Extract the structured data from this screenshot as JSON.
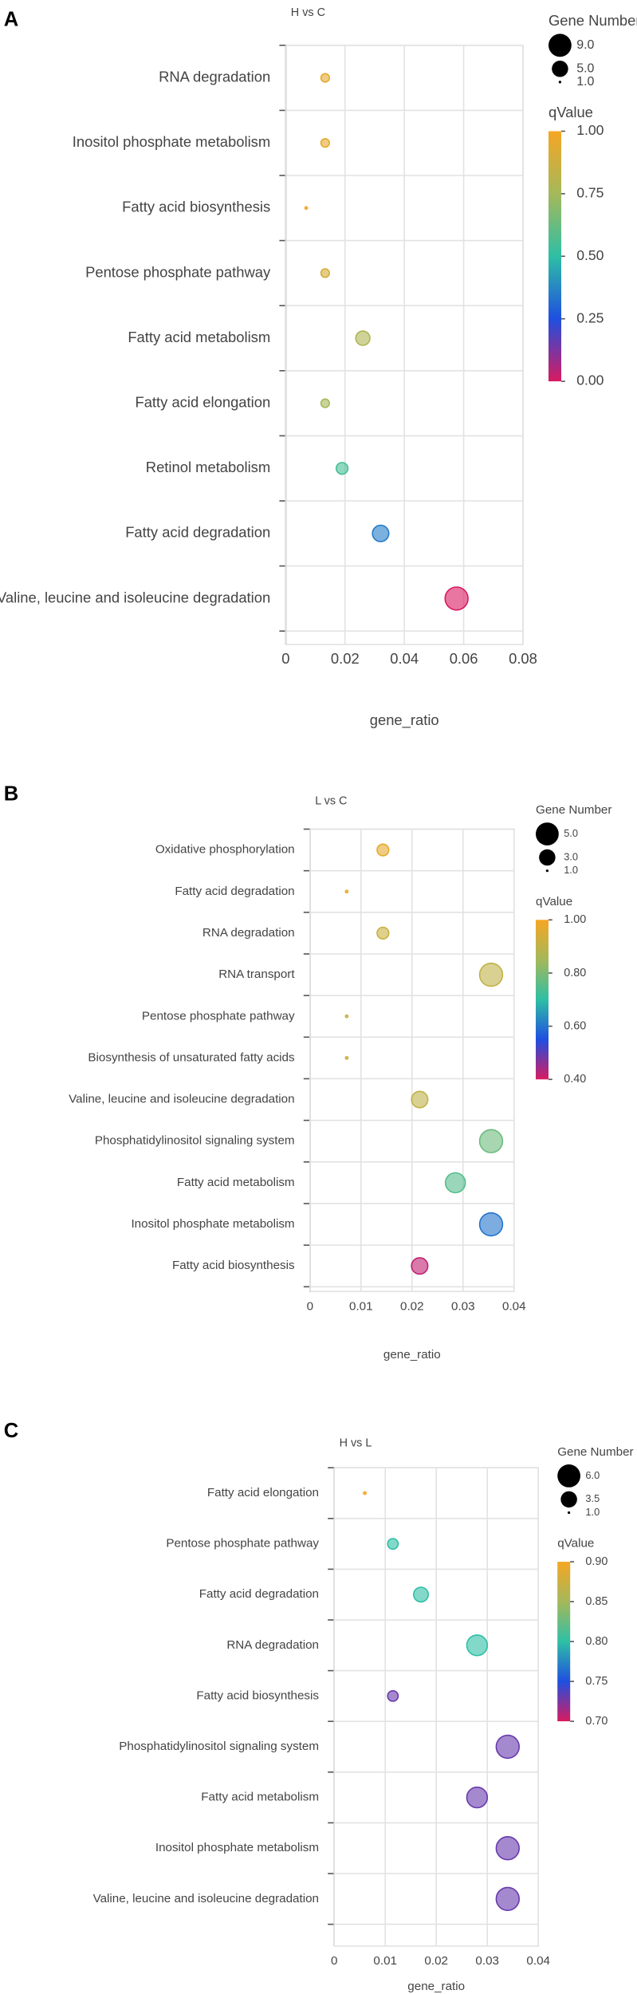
{
  "chart_data": [
    {
      "type": "bubble",
      "panel": "A",
      "title": "H vs C",
      "x_label": "gene_ratio",
      "categories": [
        "RNA degradation",
        "Inositol phosphate metabolism",
        "Fatty acid biosynthesis",
        "Pentose phosphate pathway",
        "Fatty acid metabolism",
        "Fatty acid elongation",
        "Retinol metabolism",
        "Fatty acid degradation",
        "Valine, leucine and isoleucine degradation"
      ],
      "values": [
        0.0133,
        0.0133,
        0.0069,
        0.0133,
        0.026,
        0.0133,
        0.019,
        0.032,
        0.0576
      ],
      "sizes": [
        2,
        2,
        1,
        2,
        4,
        2,
        3,
        5,
        9
      ],
      "qvalues": [
        0.95,
        0.95,
        1.0,
        0.9,
        0.78,
        0.75,
        0.55,
        0.35,
        0.0
      ],
      "xlim": [
        0,
        0.08
      ],
      "xticks": [
        0,
        0.02,
        0.04,
        0.06,
        0.08
      ],
      "grid": true,
      "size_title": "Gene Number",
      "size_ticks": [
        {
          "value": 9,
          "label": "9.0"
        },
        {
          "value": 5,
          "label": "5.0"
        },
        {
          "value": 1,
          "label": "1.0"
        }
      ],
      "color_title": "qValue",
      "clim": [
        0,
        1
      ],
      "color_ticks": [
        {
          "value": 1,
          "label": "1.00"
        },
        {
          "value": 0.75,
          "label": "0.75"
        },
        {
          "value": 0.5,
          "label": "0.50"
        },
        {
          "value": 0.25,
          "label": "0.25"
        },
        {
          "value": 0,
          "label": "0.00"
        }
      ],
      "colormap": [
        "#d81b60",
        "#1f4fe0",
        "#2ebfa5",
        "#a5b85a",
        "#f5a623"
      ]
    },
    {
      "type": "bubble",
      "panel": "B",
      "title": "L vs C",
      "x_label": "gene_ratio",
      "categories": [
        "Oxidative phosphorylation",
        "Fatty acid degradation",
        "RNA degradation",
        "RNA transport",
        "Pentose phosphate pathway",
        "Biosynthesis of unsaturated fatty acids",
        "Valine, leucine and isoleucine degradation",
        "Phosphatidylinositol signaling system",
        "Fatty acid metabolism",
        "Inositol phosphate metabolism",
        "Fatty acid biosynthesis"
      ],
      "values": [
        0.0143,
        0.0072,
        0.0143,
        0.0355,
        0.0072,
        0.0072,
        0.0215,
        0.0355,
        0.0285,
        0.0355,
        0.0215
      ],
      "sizes": [
        2,
        1,
        2,
        5,
        1,
        1,
        3,
        5,
        4,
        5,
        3
      ],
      "qvalues": [
        0.97,
        0.97,
        0.92,
        0.9,
        0.92,
        0.92,
        0.9,
        0.78,
        0.75,
        0.6,
        0.42
      ],
      "xlim": [
        0,
        0.04
      ],
      "xticks": [
        0,
        0.01,
        0.02,
        0.03,
        0.04
      ],
      "grid": true,
      "size_title": "Gene Number",
      "size_ticks": [
        {
          "value": 5,
          "label": "5.0"
        },
        {
          "value": 3,
          "label": "3.0"
        },
        {
          "value": 1,
          "label": "1.0"
        }
      ],
      "color_title": "qValue",
      "clim": [
        0.4,
        1
      ],
      "color_ticks": [
        {
          "value": 1,
          "label": "1.00"
        },
        {
          "value": 0.8,
          "label": "0.80"
        },
        {
          "value": 0.6,
          "label": "0.60"
        },
        {
          "value": 0.4,
          "label": "0.40"
        }
      ],
      "colormap": [
        "#d81b60",
        "#1f4fe0",
        "#2ebfa5",
        "#a5b85a",
        "#f5a623"
      ]
    },
    {
      "type": "bubble",
      "panel": "C",
      "title": "H vs L",
      "x_label": "gene_ratio",
      "categories": [
        "Fatty acid elongation",
        "Pentose phosphate pathway",
        "Fatty acid degradation",
        "RNA degradation",
        "Fatty acid biosynthesis",
        "Phosphatidylinositol signaling system",
        "Fatty acid metabolism",
        "Inositol phosphate metabolism",
        "Valine, leucine and isoleucine degradation"
      ],
      "values": [
        0.006,
        0.0115,
        0.017,
        0.028,
        0.0115,
        0.034,
        0.028,
        0.034,
        0.034
      ],
      "sizes": [
        1,
        2,
        3,
        5,
        2,
        6,
        5,
        6,
        6
      ],
      "qvalues": [
        0.9,
        0.8,
        0.8,
        0.8,
        0.73,
        0.73,
        0.73,
        0.73,
        0.73
      ],
      "xlim": [
        0,
        0.04
      ],
      "xticks": [
        0,
        0.01,
        0.02,
        0.03,
        0.04
      ],
      "grid": true,
      "size_title": "Gene Number",
      "size_ticks": [
        {
          "value": 6,
          "label": "6.0"
        },
        {
          "value": 3.5,
          "label": "3.5"
        },
        {
          "value": 1,
          "label": "1.0"
        }
      ],
      "color_title": "qValue",
      "clim": [
        0.7,
        0.9
      ],
      "color_ticks": [
        {
          "value": 0.9,
          "label": "0.90"
        },
        {
          "value": 0.85,
          "label": "0.85"
        },
        {
          "value": 0.8,
          "label": "0.80"
        },
        {
          "value": 0.75,
          "label": "0.75"
        },
        {
          "value": 0.7,
          "label": "0.70"
        }
      ],
      "colormap": [
        "#d81b60",
        "#1f4fe0",
        "#2ebfa5",
        "#a5b85a",
        "#f5a623"
      ]
    }
  ]
}
